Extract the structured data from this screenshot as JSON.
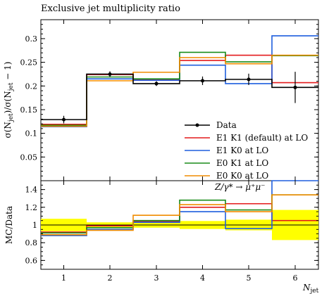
{
  "chart_data": [
    {
      "type": "line",
      "panel": "main",
      "title": "Exclusive jet multiplicity ratio",
      "ylabel": "σ(N_jet)/σ(N_jet − 1)",
      "ylim": [
        0,
        0.34
      ],
      "y_ticks": [
        0.05,
        0.1,
        0.15,
        0.2,
        0.25,
        0.3
      ],
      "x_bins": [
        1,
        2,
        3,
        4,
        5,
        6
      ],
      "series": [
        {
          "name": "Data",
          "color": "#000000",
          "values": [
            0.129,
            0.225,
            0.205,
            0.211,
            0.214,
            0.197
          ],
          "errors": [
            0.008,
            0.006,
            0.005,
            0.009,
            0.012,
            0.033
          ],
          "style": "points"
        },
        {
          "name": "E1 K1 (default) at LO",
          "color": "#e41a1c",
          "values": [
            0.119,
            0.224,
            0.213,
            0.254,
            0.265,
            0.207
          ]
        },
        {
          "name": "E1 K0 at LO",
          "color": "#1f5fde",
          "values": [
            0.114,
            0.215,
            0.212,
            0.244,
            0.205,
            0.306
          ]
        },
        {
          "name": "E0 K1 at LO",
          "color": "#1a8c1a",
          "values": [
            0.117,
            0.219,
            0.215,
            0.271,
            0.251,
            0.264
          ]
        },
        {
          "name": "E0 K0 at LO",
          "color": "#f08c00",
          "values": [
            0.115,
            0.211,
            0.229,
            0.26,
            0.247,
            0.265
          ]
        }
      ],
      "annotation": "Z/γ* → μ⁺μ⁻"
    },
    {
      "type": "line",
      "panel": "ratio",
      "ylabel": "MC/Data",
      "xlabel": "N_jet",
      "ylim": [
        0.5,
        1.5
      ],
      "y_ticks": [
        0.6,
        0.8,
        1.0,
        1.2,
        1.4
      ],
      "y_tick_labels": [
        "0.6",
        "0.8",
        "1",
        "1.2",
        "1.4"
      ],
      "x_ticks": [
        "1",
        "2",
        "3",
        "4",
        "5",
        "6"
      ],
      "band_color": "#ffff00",
      "data_uncertainty": [
        0.07,
        0.03,
        0.03,
        0.045,
        0.06,
        0.17
      ],
      "series": [
        {
          "name": "E1 K1 (default) at LO",
          "color": "#e41a1c",
          "values": [
            0.92,
            0.99,
            1.04,
            1.2,
            1.24,
            1.05
          ]
        },
        {
          "name": "E1 K0 at LO",
          "color": "#1f5fde",
          "values": [
            0.88,
            0.95,
            1.03,
            1.15,
            0.96,
            1.55
          ]
        },
        {
          "name": "E0 K1 at LO",
          "color": "#1a8c1a",
          "values": [
            0.91,
            0.97,
            1.05,
            1.28,
            1.17,
            1.34
          ]
        },
        {
          "name": "E0 K0 at LO",
          "color": "#f08c00",
          "values": [
            0.89,
            0.94,
            1.11,
            1.23,
            1.15,
            1.34
          ]
        }
      ]
    }
  ],
  "labels": {
    "title": "Exclusive jet multiplicity ratio",
    "legend_title": "Z/γ* → μ⁺μ⁻"
  }
}
